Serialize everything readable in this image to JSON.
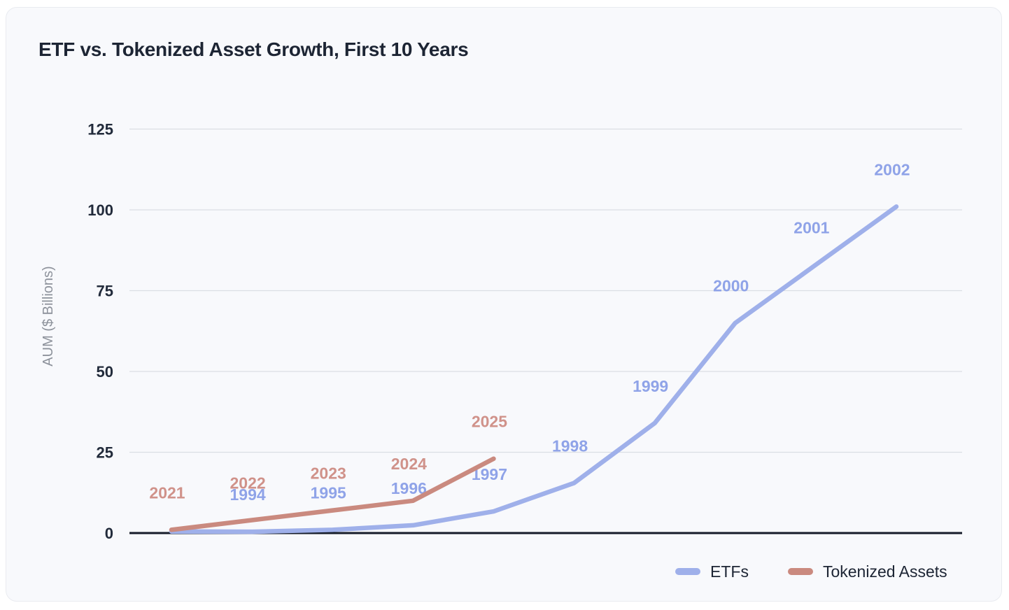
{
  "card": {
    "title": "ETF vs. Tokenized Asset Growth, First 10 Years"
  },
  "chart_data": {
    "type": "line",
    "title": "ETF vs. Tokenized Asset Growth, First 10 Years",
    "xlabel": "",
    "ylabel": "AUM ($ Billions)",
    "yticks": [
      0,
      25,
      50,
      75,
      100,
      125
    ],
    "ylim": [
      0,
      130
    ],
    "grid": true,
    "legend_position": "bottom-right",
    "x_axis_note": "x positions are years-since-launch (0-9); both series share the same x band",
    "series": [
      {
        "name": "ETFs",
        "color": "#9fb0ea",
        "label_color": "#8fa3e8",
        "point_labels": [
          "",
          "1994",
          "1995",
          "1996",
          "1997",
          "1998",
          "1999",
          "2000",
          "2001",
          "2002"
        ],
        "values": [
          0.5,
          0.4,
          1.0,
          2.4,
          6.7,
          15.5,
          34,
          65,
          83,
          101
        ]
      },
      {
        "name": "Tokenized Assets",
        "color": "#ca8a7f",
        "label_color": "#d0928a",
        "point_labels": [
          "2021",
          "2022",
          "2023",
          "2024",
          "2025"
        ],
        "values": [
          1,
          4,
          7,
          10,
          23
        ]
      }
    ]
  }
}
